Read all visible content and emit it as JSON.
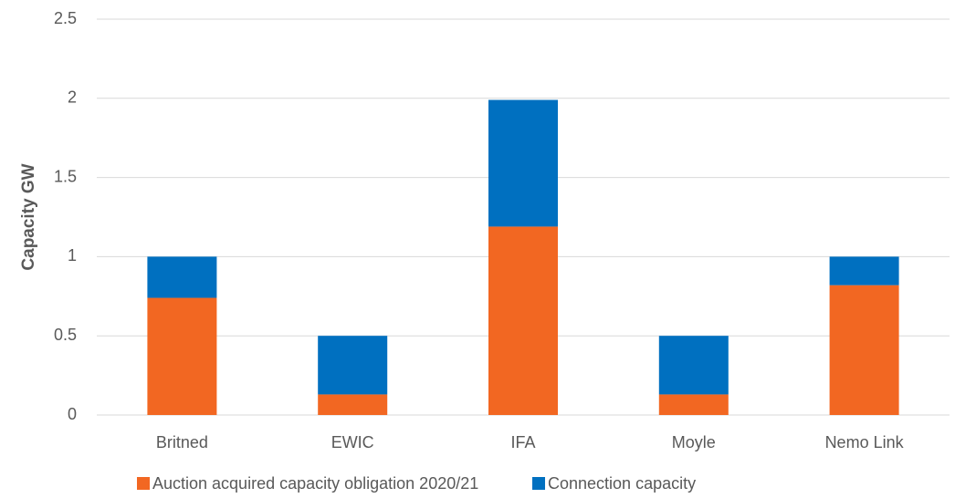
{
  "chart_data": {
    "type": "stacked_bar",
    "ylabel": "Capacity GW",
    "categories": [
      "Britned",
      "EWIC",
      "IFA",
      "Moyle",
      "Nemo Link"
    ],
    "series": [
      {
        "name": "Auction acquired capacity obligation 2020/21",
        "color": "#f26722",
        "values": [
          0.74,
          0.13,
          1.19,
          0.13,
          0.82
        ]
      },
      {
        "name": "Connection capacity",
        "color": "#0070c0",
        "values": [
          0.26,
          0.37,
          0.8,
          0.37,
          0.18
        ]
      }
    ],
    "ylim": [
      0,
      2.5
    ],
    "yticks": [
      0,
      0.5,
      1,
      1.5,
      2,
      2.5
    ],
    "grid": true,
    "legend": "bottom"
  }
}
